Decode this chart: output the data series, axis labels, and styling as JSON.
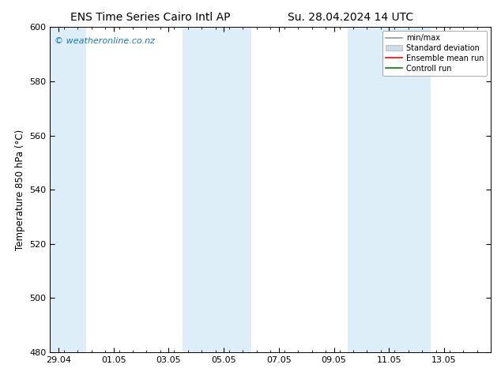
{
  "title_left": "ENS Time Series Cairo Intl AP",
  "title_right": "Su. 28.04.2024 14 UTC",
  "ylabel": "Temperature 850 hPa (°C)",
  "ylim": [
    480,
    600
  ],
  "yticks": [
    480,
    500,
    520,
    540,
    560,
    580,
    600
  ],
  "xtick_labels": [
    "29.04",
    "01.05",
    "03.05",
    "05.05",
    "07.05",
    "09.05",
    "11.05",
    "13.05"
  ],
  "xtick_positions": [
    0,
    2,
    4,
    6,
    8,
    10,
    12,
    14
  ],
  "xmin": -0.3,
  "xmax": 15.3,
  "shaded_bands": [
    {
      "x_start": -0.3,
      "x_end": 1.0,
      "color": "#ddeef8"
    },
    {
      "x_start": 4.5,
      "x_end": 7.0,
      "color": "#ddeef8"
    },
    {
      "x_start": 10.5,
      "x_end": 13.5,
      "color": "#ddeef8"
    }
  ],
  "watermark_text": "© weatheronline.co.nz",
  "watermark_color": "#1177cc",
  "watermark_fontsize": 8,
  "legend_entries": [
    {
      "label": "min/max",
      "color": "#999999",
      "lw": 1.2,
      "type": "line"
    },
    {
      "label": "Standard deviation",
      "color": "#ccdde8",
      "lw": 5,
      "type": "bar"
    },
    {
      "label": "Ensemble mean run",
      "color": "red",
      "lw": 1.2,
      "type": "line"
    },
    {
      "label": "Controll run",
      "color": "green",
      "lw": 1.2,
      "type": "line"
    }
  ],
  "background_color": "#ffffff",
  "tick_label_fontsize": 8,
  "axis_label_fontsize": 8.5,
  "title_fontsize": 10
}
